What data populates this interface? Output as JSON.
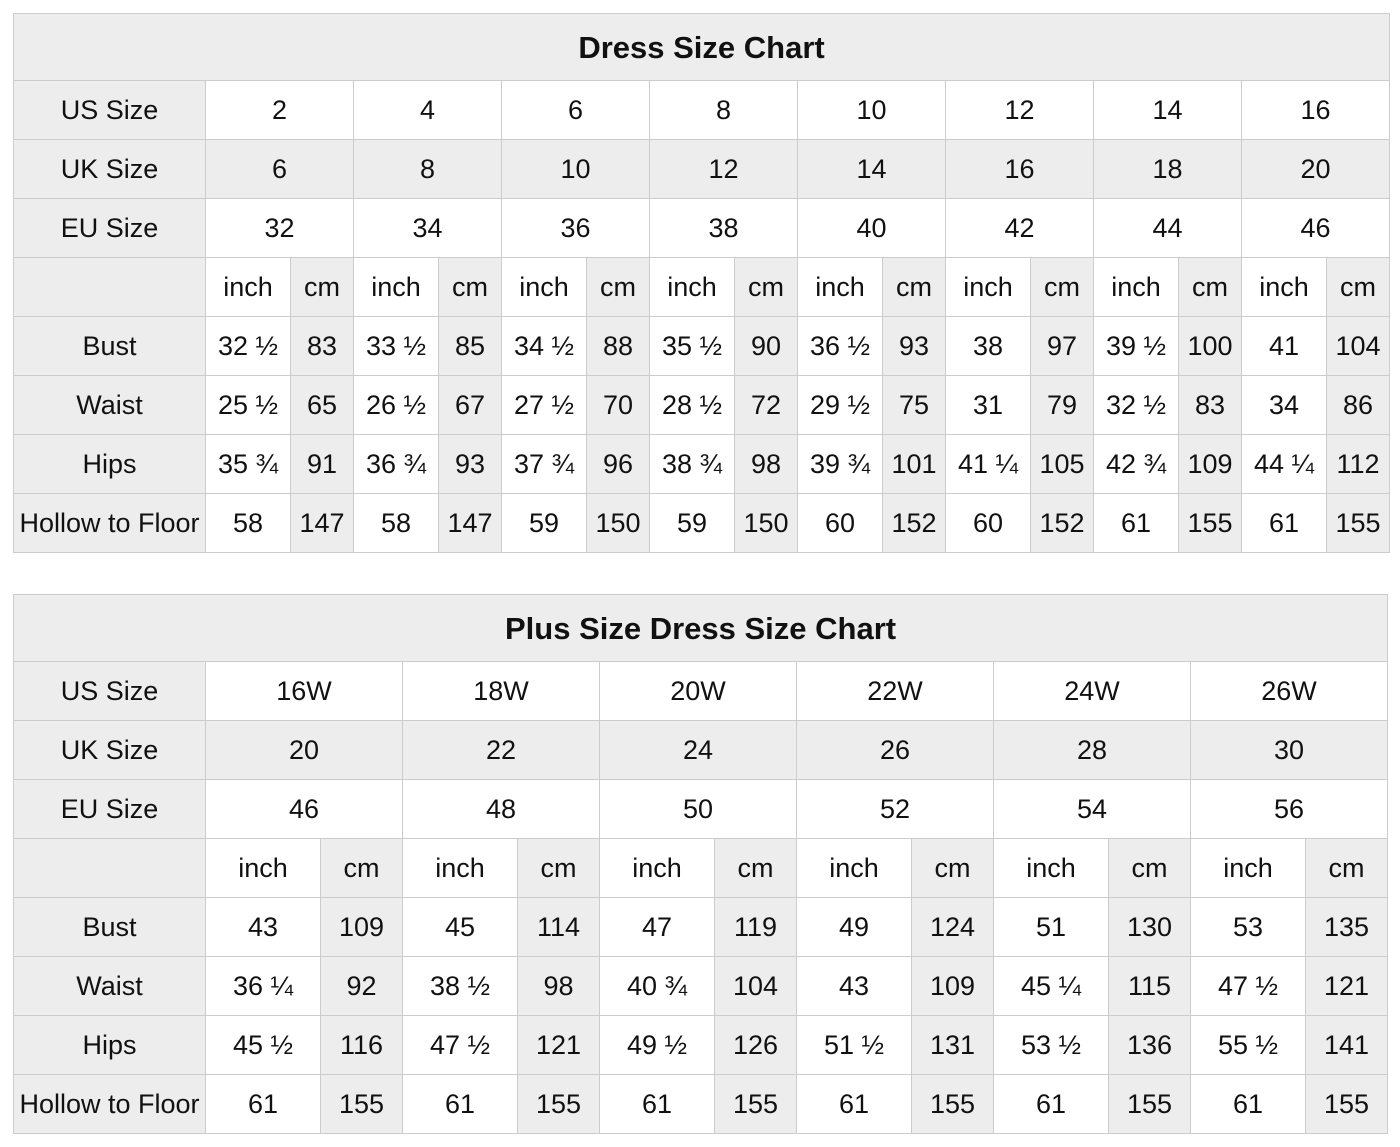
{
  "style": {
    "shade_bg": "#ededed",
    "plain_bg": "#ffffff",
    "border": "#cccccc",
    "outer_border": "#b2b2b2",
    "text": "#111111"
  },
  "unit_labels": {
    "inch": "inch",
    "cm": "cm"
  },
  "chart_data": [
    {
      "type": "table",
      "id": "dress-size-chart",
      "title": "Dress Size Chart",
      "size_rows": [
        {
          "label": "US Size",
          "values": [
            "2",
            "4",
            "6",
            "8",
            "10",
            "12",
            "14",
            "16"
          ]
        },
        {
          "label": "UK Size",
          "values": [
            "6",
            "8",
            "10",
            "12",
            "14",
            "16",
            "18",
            "20"
          ]
        },
        {
          "label": "EU Size",
          "values": [
            "32",
            "34",
            "36",
            "38",
            "40",
            "42",
            "44",
            "46"
          ]
        }
      ],
      "measure_rows": [
        {
          "label": "Bust",
          "inch": [
            "32 ½",
            "33 ½",
            "34 ½",
            "35 ½",
            "36 ½",
            "38",
            "39 ½",
            "41"
          ],
          "cm": [
            "83",
            "85",
            "88",
            "90",
            "93",
            "97",
            "100",
            "104"
          ]
        },
        {
          "label": "Waist",
          "inch": [
            "25 ½",
            "26 ½",
            "27 ½",
            "28 ½",
            "29 ½",
            "31",
            "32 ½",
            "34"
          ],
          "cm": [
            "65",
            "67",
            "70",
            "72",
            "75",
            "79",
            "83",
            "86"
          ]
        },
        {
          "label": "Hips",
          "inch": [
            "35 ¾",
            "36 ¾",
            "37 ¾",
            "38 ¾",
            "39 ¾",
            "41 ¼",
            "42 ¾",
            "44 ¼"
          ],
          "cm": [
            "91",
            "93",
            "96",
            "98",
            "101",
            "105",
            "109",
            "112"
          ]
        },
        {
          "label": "Hollow to Floor",
          "inch": [
            "58",
            "58",
            "59",
            "59",
            "60",
            "60",
            "61",
            "61"
          ],
          "cm": [
            "147",
            "147",
            "150",
            "150",
            "152",
            "152",
            "155",
            "155"
          ]
        }
      ]
    },
    {
      "type": "table",
      "id": "plus-size-dress-size-chart",
      "title": "Plus Size Dress Size Chart",
      "size_rows": [
        {
          "label": "US Size",
          "values": [
            "16W",
            "18W",
            "20W",
            "22W",
            "24W",
            "26W"
          ]
        },
        {
          "label": "UK Size",
          "values": [
            "20",
            "22",
            "24",
            "26",
            "28",
            "30"
          ]
        },
        {
          "label": "EU Size",
          "values": [
            "46",
            "48",
            "50",
            "52",
            "54",
            "56"
          ]
        }
      ],
      "measure_rows": [
        {
          "label": "Bust",
          "inch": [
            "43",
            "45",
            "47",
            "49",
            "51",
            "53"
          ],
          "cm": [
            "109",
            "114",
            "119",
            "124",
            "130",
            "135"
          ]
        },
        {
          "label": "Waist",
          "inch": [
            "36 ¼",
            "38 ½",
            "40 ¾",
            "43",
            "45 ¼",
            "47 ½"
          ],
          "cm": [
            "92",
            "98",
            "104",
            "109",
            "115",
            "121"
          ]
        },
        {
          "label": "Hips",
          "inch": [
            "45 ½",
            "47 ½",
            "49 ½",
            "51 ½",
            "53 ½",
            "55 ½"
          ],
          "cm": [
            "116",
            "121",
            "126",
            "131",
            "136",
            "141"
          ]
        },
        {
          "label": "Hollow to Floor",
          "inch": [
            "61",
            "61",
            "61",
            "61",
            "61",
            "61"
          ],
          "cm": [
            "155",
            "155",
            "155",
            "155",
            "155",
            "155"
          ]
        }
      ]
    }
  ]
}
